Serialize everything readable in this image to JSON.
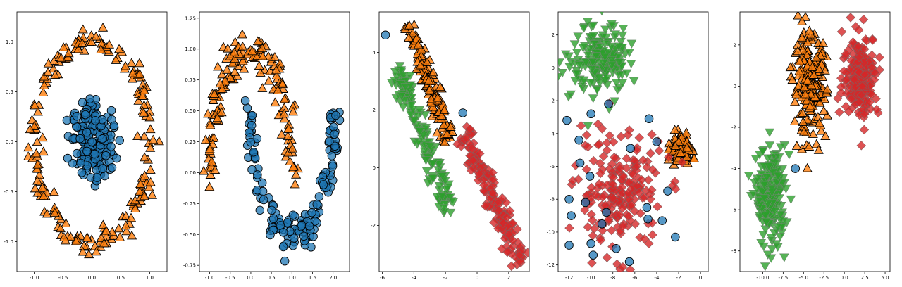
{
  "colors": {
    "blue": "#1f77b4",
    "orange": "#ff7f0e",
    "green": "#2ca02c",
    "red": "#d62728"
  },
  "chart_data": [
    {
      "type": "scatter",
      "title": "",
      "xlim": [
        -1.3,
        1.3
      ],
      "ylim": [
        -1.3,
        1.3
      ],
      "xticks": [
        -1.0,
        -0.5,
        0.0,
        0.5,
        1.0
      ],
      "xtick_labels": [
        "-1.0",
        "-0.5",
        "0.0",
        "0.5",
        "1.0"
      ],
      "yticks": [
        -1.0,
        -0.5,
        0.0,
        0.5,
        1.0
      ],
      "ytick_labels": [
        "-1.0",
        "-0.5",
        "0.0",
        "0.5",
        "1.0"
      ],
      "series": [
        {
          "marker": "circle",
          "color": "#1f77b4",
          "cluster": {
            "kind": "ring",
            "cx": 0.0,
            "cy": 0.0,
            "r": 0.25,
            "spread": 0.18,
            "n": 180
          }
        },
        {
          "marker": "triangle-up",
          "color": "#ff7f0e",
          "cluster": {
            "kind": "ring",
            "cx": 0.0,
            "cy": 0.0,
            "r": 1.0,
            "spread": 0.1,
            "n": 200
          }
        }
      ]
    },
    {
      "type": "scatter",
      "title": "",
      "xlim": [
        -1.25,
        2.4
      ],
      "ylim": [
        -0.8,
        1.3
      ],
      "xticks": [
        -1.0,
        -0.5,
        0.0,
        0.5,
        1.0,
        1.5,
        2.0
      ],
      "xtick_labels": [
        "-1.0",
        "-0.5",
        "0.0",
        "0.5",
        "1.0",
        "1.5",
        "2.0"
      ],
      "yticks": [
        -0.75,
        -0.5,
        -0.25,
        0.0,
        0.25,
        0.5,
        0.75,
        1.0,
        1.25
      ],
      "ytick_labels": [
        "-0.75",
        "-0.50",
        "-0.25",
        "0.00",
        "0.25",
        "0.50",
        "0.75",
        "1.00",
        "1.25"
      ],
      "series": [
        {
          "marker": "triangle-up",
          "color": "#ff7f0e",
          "cluster": {
            "kind": "arc",
            "cx": 0.0,
            "cy": 0.0,
            "r": 1.0,
            "a0": 0,
            "a1": 180,
            "spread": 0.08,
            "n": 150
          }
        },
        {
          "marker": "circle",
          "color": "#1f77b4",
          "cluster": {
            "kind": "arc",
            "cx": 1.0,
            "cy": 0.5,
            "r": 1.0,
            "a0": 180,
            "a1": 360,
            "spread": 0.08,
            "n": 150
          }
        }
      ]
    },
    {
      "type": "scatter",
      "title": "",
      "xlim": [
        -6.2,
        3.3
      ],
      "ylim": [
        -3.6,
        5.4
      ],
      "xticks": [
        -6,
        -4,
        -2,
        0,
        2
      ],
      "xtick_labels": [
        "-6",
        "-4",
        "-2",
        "0",
        "2"
      ],
      "yticks": [
        -2,
        0,
        2,
        4
      ],
      "ytick_labels": [
        "-2",
        "0",
        "2",
        "4"
      ],
      "series": [
        {
          "marker": "circle",
          "color": "#1f77b4",
          "points": [
            [
              -5.8,
              4.6
            ],
            [
              -0.9,
              1.9
            ]
          ]
        },
        {
          "marker": "triangle-up",
          "color": "#ff7f0e",
          "cluster": {
            "kind": "line",
            "x0": -4.4,
            "y0": 5.0,
            "x1": -1.7,
            "y1": 1.0,
            "spread": 0.22,
            "n": 130
          }
        },
        {
          "marker": "triangle-down",
          "color": "#2ca02c",
          "cluster": {
            "kind": "line",
            "x0": -5.1,
            "y0": 3.4,
            "x1": -1.7,
            "y1": -1.6,
            "spread": 0.28,
            "n": 140
          }
        },
        {
          "marker": "diamond",
          "color": "#d62728",
          "cluster": {
            "kind": "line",
            "x0": -0.9,
            "y0": 1.3,
            "x1": 2.8,
            "y1": -3.3,
            "spread": 0.25,
            "n": 160
          }
        }
      ]
    },
    {
      "type": "scatter",
      "title": "",
      "xlim": [
        -13.0,
        0.7
      ],
      "ylim": [
        -12.4,
        3.4
      ],
      "xticks": [
        -12,
        -10,
        -8,
        -6,
        -4,
        -2,
        0
      ],
      "xtick_labels": [
        "-12",
        "-10",
        "-8",
        "-6",
        "-4",
        "-2",
        "0"
      ],
      "yticks": [
        -12,
        -10,
        -8,
        -6,
        -4,
        -2,
        0,
        2
      ],
      "ytick_labels": [
        "-12",
        "-10",
        "-8",
        "-6",
        "-4",
        "-2",
        "0",
        "2"
      ],
      "series": [
        {
          "marker": "triangle-down",
          "color": "#2ca02c",
          "cluster": {
            "kind": "blob",
            "cx": -9.2,
            "cy": 0.6,
            "sx": 1.3,
            "sy": 1.1,
            "n": 180
          }
        },
        {
          "marker": "triangle-up",
          "color": "#ff7f0e",
          "cluster": {
            "kind": "blob",
            "cx": -1.8,
            "cy": -5.0,
            "sx": 0.45,
            "sy": 0.45,
            "n": 110
          }
        },
        {
          "marker": "diamond",
          "color": "#d62728",
          "cluster": {
            "kind": "blob",
            "cx": -7.5,
            "cy": -7.5,
            "sx": 2.0,
            "sy": 1.8,
            "n": 200
          }
        },
        {
          "marker": "circle",
          "color": "#1f77b4",
          "points": [
            [
              -12.2,
              -3.2
            ],
            [
              -10.0,
              -2.8
            ],
            [
              -8.4,
              -2.2
            ],
            [
              -4.7,
              -3.1
            ],
            [
              -11.1,
              -4.4
            ],
            [
              -6.4,
              -4.9
            ],
            [
              -4.0,
              -4.5
            ],
            [
              -12.0,
              -8.0
            ],
            [
              -11.8,
              -9.0
            ],
            [
              -10.5,
              -8.2
            ],
            [
              -12.0,
              -10.8
            ],
            [
              -10.0,
              -10.7
            ],
            [
              -9.8,
              -11.4
            ],
            [
              -9.0,
              -9.5
            ],
            [
              -7.7,
              -11.0
            ],
            [
              -6.5,
              -11.8
            ],
            [
              -4.8,
              -9.2
            ],
            [
              -2.3,
              -10.3
            ],
            [
              -3.5,
              -9.3
            ],
            [
              -4.9,
              -8.5
            ],
            [
              -10.1,
              -6.6
            ],
            [
              -11.0,
              -5.8
            ],
            [
              -3.0,
              -7.5
            ],
            [
              -8.6,
              -8.8
            ]
          ]
        }
      ]
    },
    {
      "type": "scatter",
      "title": "",
      "xlim": [
        -12.8,
        5.6
      ],
      "ylim": [
        -9.0,
        3.6
      ],
      "xticks": [
        -10.0,
        -7.5,
        -5.0,
        -2.5,
        0.0,
        2.5,
        5.0
      ],
      "xtick_labels": [
        "-10.0",
        "-7.5",
        "-5.0",
        "-2.5",
        "0.0",
        "2.5",
        "5.0"
      ],
      "yticks": [
        -8,
        -6,
        -4,
        -2,
        0,
        2
      ],
      "ytick_labels": [
        "-8",
        "-6",
        "-4",
        "-2",
        "0",
        "2"
      ],
      "series": [
        {
          "marker": "triangle-up",
          "color": "#ff7f0e",
          "cluster": {
            "kind": "blob",
            "cx": -4.2,
            "cy": 0.0,
            "sx": 1.0,
            "sy": 1.2,
            "n": 200
          }
        },
        {
          "marker": "diamond",
          "color": "#d62728",
          "cluster": {
            "kind": "blob",
            "cx": 2.0,
            "cy": 0.5,
            "sx": 1.1,
            "sy": 1.0,
            "n": 200
          }
        },
        {
          "marker": "triangle-down",
          "color": "#2ca02c",
          "cluster": {
            "kind": "blob",
            "cx": -9.0,
            "cy": -5.4,
            "sx": 0.9,
            "sy": 1.2,
            "n": 200
          }
        },
        {
          "marker": "circle",
          "color": "#1f77b4",
          "points": [
            [
              -6.0,
              -4.0
            ]
          ]
        }
      ]
    }
  ]
}
